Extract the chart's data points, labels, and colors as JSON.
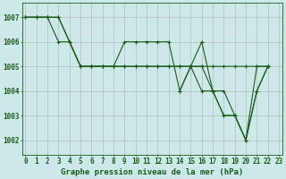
{
  "xlabel": "Graphe pression niveau de la mer (hPa)",
  "bg_color": "#cce8e8",
  "grid_color": "#b8d8d8",
  "line_color": "#1a5c1a",
  "marker": "+",
  "line1": [
    1007,
    1007,
    1007,
    1006,
    1006,
    1005,
    1005,
    1005,
    1005,
    1006,
    1006,
    1006,
    1006,
    1006,
    1004,
    1005,
    1006,
    1004,
    1004,
    1003,
    1002,
    1005,
    1005,
    null
  ],
  "line2": [
    1007,
    1007,
    1007,
    1007,
    1006,
    1005,
    1005,
    1005,
    1005,
    1005,
    1005,
    1005,
    1005,
    1005,
    1005,
    1005,
    1005,
    1005,
    1005,
    1005,
    1005,
    1005,
    1005,
    null
  ],
  "line3": [
    1007,
    1007,
    1007,
    1007,
    1006,
    1005,
    1005,
    1005,
    1005,
    1005,
    1005,
    1005,
    1005,
    1005,
    1005,
    1005,
    1004,
    1004,
    1003,
    1003,
    1002,
    1004,
    1005,
    null
  ],
  "line4": [
    null,
    null,
    null,
    null,
    null,
    null,
    null,
    null,
    null,
    null,
    null,
    null,
    null,
    null,
    1004,
    1005,
    1005,
    1004,
    1003,
    1003,
    1002,
    1004,
    1005,
    null
  ],
  "xlim": [
    -0.3,
    23.3
  ],
  "ylim": [
    1001.4,
    1007.6
  ],
  "yticks": [
    1002,
    1003,
    1004,
    1005,
    1006,
    1007
  ],
  "xticks": [
    0,
    1,
    2,
    3,
    4,
    5,
    6,
    7,
    8,
    9,
    10,
    11,
    12,
    13,
    14,
    15,
    16,
    17,
    18,
    19,
    20,
    21,
    22,
    23
  ],
  "tick_fontsize": 5.5,
  "xlabel_fontsize": 6.5,
  "figwidth": 3.2,
  "figheight": 2.0,
  "dpi": 100
}
